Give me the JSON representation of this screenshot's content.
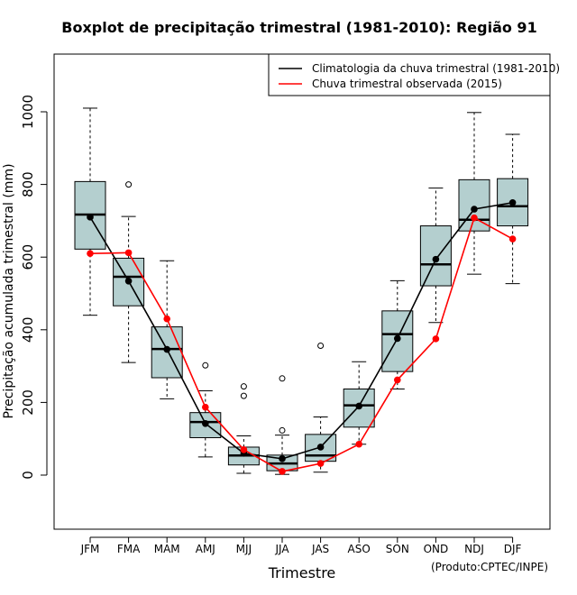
{
  "chart_data": {
    "type": "boxplot",
    "title": "Boxplot de precipitação trimestral (1981-2010): Região 91",
    "xlabel": "Trimestre",
    "ylabel": "Precipitação acumulada trimestral (mm)",
    "ylim": [
      -150,
      1150
    ],
    "yticks": [
      0,
      200,
      400,
      600,
      800,
      1000
    ],
    "categories": [
      "JFM",
      "FMA",
      "MAM",
      "AMJ",
      "MJJ",
      "JJA",
      "JAS",
      "ASO",
      "SON",
      "OND",
      "NDJ",
      "DJF"
    ],
    "boxes": [
      {
        "min": 440,
        "q1": 622,
        "median": 717,
        "q3": 808,
        "max": 1010,
        "outliers": []
      },
      {
        "min": 310,
        "q1": 466,
        "median": 546,
        "q3": 597,
        "max": 712,
        "outliers": [
          800
        ]
      },
      {
        "min": 210,
        "q1": 268,
        "median": 347,
        "q3": 408,
        "max": 590,
        "outliers": []
      },
      {
        "min": 50,
        "q1": 103,
        "median": 146,
        "q3": 172,
        "max": 232,
        "outliers": [
          302
        ]
      },
      {
        "min": 5,
        "q1": 28,
        "median": 54,
        "q3": 77,
        "max": 108,
        "outliers": [
          218,
          244
        ]
      },
      {
        "min": 2,
        "q1": 12,
        "median": 32,
        "q3": 55,
        "max": 110,
        "outliers": [
          123,
          266
        ]
      },
      {
        "min": 8,
        "q1": 38,
        "median": 54,
        "q3": 112,
        "max": 160,
        "outliers": [
          356
        ]
      },
      {
        "min": 85,
        "q1": 132,
        "median": 192,
        "q3": 237,
        "max": 312,
        "outliers": []
      },
      {
        "min": 237,
        "q1": 285,
        "median": 388,
        "q3": 452,
        "max": 535,
        "outliers": []
      },
      {
        "min": 420,
        "q1": 521,
        "median": 580,
        "q3": 686,
        "max": 790,
        "outliers": []
      },
      {
        "min": 553,
        "q1": 672,
        "median": 703,
        "q3": 813,
        "max": 998,
        "outliers": []
      },
      {
        "min": 527,
        "q1": 686,
        "median": 740,
        "q3": 816,
        "max": 938,
        "outliers": []
      }
    ],
    "series": [
      {
        "name": "Climatologia da chuva trimestral (1981-2010)",
        "color": "#000000",
        "values": [
          710,
          534,
          346,
          142,
          60,
          45,
          77,
          190,
          376,
          594,
          732,
          750
        ]
      },
      {
        "name": "Chuva trimestral observada (2015)",
        "color": "#ff0000",
        "values": [
          610,
          612,
          430,
          187,
          70,
          10,
          32,
          85,
          262,
          375,
          708,
          650
        ]
      }
    ],
    "box_color": "#b4cfcf",
    "legend_position": "top-right",
    "credit": "(Produto:CPTEC/INPE)"
  }
}
